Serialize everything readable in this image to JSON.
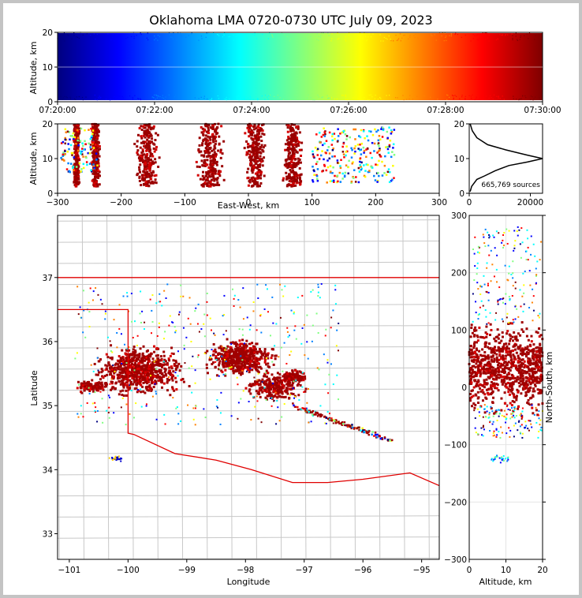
{
  "title": "Oklahoma LMA 0720-0730 UTC July 09, 2023",
  "chart_data": [
    {
      "id": "time-height",
      "type": "scatter",
      "xlabel": "",
      "ylabel": "Altitude, km",
      "xticks": [
        "07:20:00",
        "07:22:00",
        "07:24:00",
        "07:26:00",
        "07:28:00",
        "07:30:00"
      ],
      "yticks": [
        0,
        10,
        20
      ],
      "xlim": [
        "07:20:00",
        "07:30:00"
      ],
      "ylim": [
        0,
        20
      ],
      "colormap": "jet, colored by time",
      "grid": true
    },
    {
      "id": "east-west-altitude",
      "type": "scatter",
      "xlabel": "East-West, km",
      "ylabel": "Altitude, km",
      "xticks": [
        -300,
        -200,
        -100,
        0,
        100,
        200,
        300
      ],
      "yticks": [
        0,
        10,
        20
      ],
      "xlim": [
        -300,
        300
      ],
      "ylim": [
        0,
        20
      ],
      "grid": true
    },
    {
      "id": "altitude-histogram",
      "type": "line",
      "xlabel": "",
      "ylabel": "",
      "xticks": [
        0,
        20000
      ],
      "yticks": [
        0,
        10,
        20
      ],
      "xlim": [
        0,
        24000
      ],
      "ylim": [
        0,
        20
      ],
      "annotation": "665,769 sources",
      "x": [
        300,
        800,
        2500,
        5000,
        8500,
        13000,
        19000,
        24000,
        19000,
        12000,
        6000,
        2500,
        1000,
        300
      ],
      "y": [
        0.5,
        2,
        4,
        5,
        6.5,
        8,
        9,
        10,
        11,
        12.5,
        14,
        16,
        18,
        20
      ]
    },
    {
      "id": "plan-view",
      "type": "scatter",
      "xlabel": "Longitude",
      "ylabel": "Latitude",
      "xticks": [
        -101,
        -100,
        -99,
        -98,
        -97,
        -96,
        -95
      ],
      "yticks": [
        33,
        34,
        35,
        36,
        37
      ],
      "xlim": [
        -101.2,
        -94.7
      ],
      "ylim": [
        32.6,
        37.97
      ],
      "grid": true
    },
    {
      "id": "altitude-north-south",
      "type": "scatter",
      "xlabel": "Altitude, km",
      "ylabel": "North-South, km",
      "xticks": [
        0,
        10,
        20
      ],
      "yticks": [
        -300,
        -200,
        -100,
        0,
        100,
        200,
        300
      ],
      "xlim": [
        0,
        20
      ],
      "ylim": [
        -300,
        300
      ],
      "grid": true
    }
  ],
  "colors": {
    "state_border": "#e00000",
    "county_lines": "#c8c8c8",
    "jet": [
      "#00007f",
      "#0000ff",
      "#0080ff",
      "#00ffff",
      "#80ff80",
      "#ffff00",
      "#ff8000",
      "#ff0000",
      "#7f0000"
    ]
  }
}
